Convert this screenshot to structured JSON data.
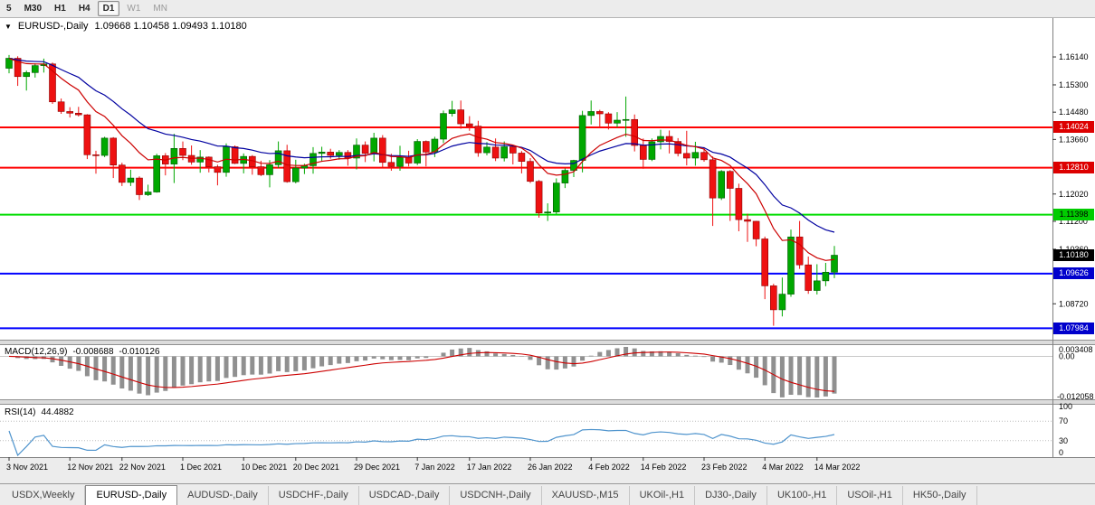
{
  "toolbar": {
    "timeframes": [
      {
        "label": "5",
        "state": "default"
      },
      {
        "label": "M30",
        "state": "default"
      },
      {
        "label": "H1",
        "state": "default"
      },
      {
        "label": "H4",
        "state": "default"
      },
      {
        "label": "D1",
        "state": "active"
      },
      {
        "label": "W1",
        "state": "disabled"
      },
      {
        "label": "MN",
        "state": "disabled"
      }
    ]
  },
  "icons": {
    "dropdown": "▼"
  },
  "chart": {
    "symbol_period": "EURUSD-,Daily",
    "ohlc_text": "1.09668 1.10458 1.09493 1.10180"
  },
  "colors": {
    "candle_up": "#00A800",
    "candle_down": "#EE1111",
    "candle_up_border": "#005500",
    "candle_down_border": "#8a0000",
    "axis_text": "#000000"
  },
  "price_axis": {
    "ticks": [
      {
        "label": "1.16140",
        "value": 1.1614
      },
      {
        "label": "1.15300",
        "value": 1.153
      },
      {
        "label": "1.14480",
        "value": 1.1448
      },
      {
        "label": "1.13660",
        "value": 1.1366
      },
      {
        "label": "1.12020",
        "value": 1.1202
      },
      {
        "label": "1.11200",
        "value": 1.112
      },
      {
        "label": "1.10360",
        "value": 1.1036
      },
      {
        "label": "1.08720",
        "value": 1.0872
      }
    ]
  },
  "price_levels": [
    {
      "price": 1.14024,
      "label": "1.14024",
      "line": "#FF0000",
      "badge_bg": "#DD0000",
      "badge_fg": "#FFFFFF",
      "width": 2
    },
    {
      "price": 1.1281,
      "label": "1.12810",
      "line": "#FF0000",
      "badge_bg": "#DD0000",
      "badge_fg": "#FFFFFF",
      "width": 2
    },
    {
      "price": 1.11398,
      "label": "1.11398",
      "line": "#00DD00",
      "badge_bg": "#00CC00",
      "badge_fg": "#000000",
      "width": 2
    },
    {
      "price": 1.09626,
      "label": "1.09626",
      "line": "#0000FF",
      "badge_bg": "#0000CC",
      "badge_fg": "#FFFFFF",
      "width": 2
    },
    {
      "price": 1.07984,
      "label": "1.07984",
      "line": "#0000FF",
      "badge_bg": "#0000CC",
      "badge_fg": "#FFFFFF",
      "width": 2
    }
  ],
  "current_price": {
    "value": 1.1018,
    "label": "1.10180",
    "badge_bg": "#000000",
    "badge_fg": "#FFFFFF"
  },
  "macd": {
    "title": "MACD(12,26,9)",
    "value_main": "-0.008688",
    "value_signal": "-0.010126",
    "axis_top": "0.003408",
    "axis_zero": "0.00",
    "axis_bottom": "-0.012058"
  },
  "rsi": {
    "title": "RSI(14)",
    "value": "44.4882",
    "period": 14,
    "color": "#4f94cd",
    "axis": [
      100,
      70,
      30,
      0
    ],
    "levels": [
      70,
      30
    ]
  },
  "date_axis": [
    {
      "text": "3 Nov 2021",
      "i": 0
    },
    {
      "text": "12 Nov 2021",
      "i": 7
    },
    {
      "text": "22 Nov 2021",
      "i": 13
    },
    {
      "text": "1 Dec 2021",
      "i": 20
    },
    {
      "text": "10 Dec 2021",
      "i": 27
    },
    {
      "text": "20 Dec 2021",
      "i": 33
    },
    {
      "text": "29 Dec 2021",
      "i": 40
    },
    {
      "text": "7 Jan 2022",
      "i": 47
    },
    {
      "text": "17 Jan 2022",
      "i": 53
    },
    {
      "text": "26 Jan 2022",
      "i": 60
    },
    {
      "text": "4 Feb 2022",
      "i": 67
    },
    {
      "text": "14 Feb 2022",
      "i": 73
    },
    {
      "text": "23 Feb 2022",
      "i": 80
    },
    {
      "text": "4 Mar 2022",
      "i": 87
    },
    {
      "text": "14 Mar 2022",
      "i": 93
    }
  ],
  "tabs": [
    {
      "label": "USDX,Weekly",
      "active": false
    },
    {
      "label": "EURUSD-,Daily",
      "active": true
    },
    {
      "label": "AUDUSD-,Daily",
      "active": false
    },
    {
      "label": "USDCHF-,Daily",
      "active": false
    },
    {
      "label": "USDCAD-,Daily",
      "active": false
    },
    {
      "label": "USDCNH-,Daily",
      "active": false
    },
    {
      "label": "XAUUSD-,M15",
      "active": false
    },
    {
      "label": "UKOil-,H1",
      "active": false
    },
    {
      "label": "DJ30-,Daily",
      "active": false
    },
    {
      "label": "UK100-,H1",
      "active": false
    },
    {
      "label": "USOil-,H1",
      "active": false
    },
    {
      "label": "HK50-,Daily",
      "active": false
    }
  ],
  "chart_data": {
    "type": "candlestick",
    "symbol": "EURUSD-",
    "timeframe": "Daily",
    "title": "EURUSD-,Daily",
    "last_bar": {
      "open": 1.09668,
      "high": 1.10458,
      "low": 1.09493,
      "close": 1.1018
    },
    "price_view_range": [
      1.0775,
      1.172
    ],
    "ma": [
      {
        "type": "ema",
        "period": 21,
        "color": "#0000A0"
      },
      {
        "type": "ema",
        "period": 10,
        "color": "#CC0000"
      }
    ],
    "macd": {
      "fast": 12,
      "slow": 26,
      "signal": 9,
      "hist_color": "#909090",
      "signal_color": "#CC0000"
    },
    "ohlc": [
      [
        1.158,
        1.162,
        1.1565,
        1.161
      ],
      [
        1.161,
        1.1616,
        1.1527,
        1.1555
      ],
      [
        1.1555,
        1.1573,
        1.1513,
        1.1567
      ],
      [
        1.1567,
        1.1595,
        1.1552,
        1.1588
      ],
      [
        1.1588,
        1.1609,
        1.1567,
        1.1593
      ],
      [
        1.1593,
        1.1597,
        1.1473,
        1.1479
      ],
      [
        1.1479,
        1.1489,
        1.1443,
        1.145
      ],
      [
        1.145,
        1.1463,
        1.1432,
        1.1445
      ],
      [
        1.1445,
        1.1464,
        1.1435,
        1.144
      ],
      [
        1.144,
        1.1442,
        1.1307,
        1.132
      ],
      [
        1.132,
        1.1332,
        1.1263,
        1.1318
      ],
      [
        1.1318,
        1.1374,
        1.1313,
        1.137
      ],
      [
        1.137,
        1.1373,
        1.125,
        1.1289
      ],
      [
        1.1289,
        1.1296,
        1.1226,
        1.1237
      ],
      [
        1.1237,
        1.1275,
        1.1226,
        1.125
      ],
      [
        1.125,
        1.1255,
        1.1184,
        1.12
      ],
      [
        1.12,
        1.123,
        1.1196,
        1.1208
      ],
      [
        1.1208,
        1.1323,
        1.1206,
        1.1317
      ],
      [
        1.1317,
        1.1325,
        1.1258,
        1.1292
      ],
      [
        1.1292,
        1.1383,
        1.1235,
        1.1339
      ],
      [
        1.1339,
        1.136,
        1.1304,
        1.1318
      ],
      [
        1.1318,
        1.1348,
        1.129,
        1.1298
      ],
      [
        1.1298,
        1.1334,
        1.1266,
        1.1313
      ],
      [
        1.1313,
        1.1315,
        1.1267,
        1.1284
      ],
      [
        1.1284,
        1.129,
        1.1228,
        1.1267
      ],
      [
        1.1267,
        1.1354,
        1.1254,
        1.1344
      ],
      [
        1.1344,
        1.1348,
        1.1292,
        1.1294
      ],
      [
        1.1294,
        1.1324,
        1.1264,
        1.1315
      ],
      [
        1.1315,
        1.1319,
        1.126,
        1.1284
      ],
      [
        1.1284,
        1.1302,
        1.1256,
        1.126
      ],
      [
        1.126,
        1.1304,
        1.1222,
        1.129
      ],
      [
        1.129,
        1.136,
        1.128,
        1.1332
      ],
      [
        1.1332,
        1.135,
        1.1236,
        1.1239
      ],
      [
        1.1239,
        1.1305,
        1.1234,
        1.128
      ],
      [
        1.128,
        1.1293,
        1.1262,
        1.1287
      ],
      [
        1.1287,
        1.1343,
        1.1263,
        1.1324
      ],
      [
        1.1324,
        1.1344,
        1.13,
        1.1328
      ],
      [
        1.1328,
        1.1338,
        1.1308,
        1.1318
      ],
      [
        1.1318,
        1.1334,
        1.1305,
        1.1327
      ],
      [
        1.1327,
        1.1334,
        1.1287,
        1.131
      ],
      [
        1.131,
        1.1369,
        1.1276,
        1.1349
      ],
      [
        1.1349,
        1.136,
        1.1298,
        1.1324
      ],
      [
        1.1324,
        1.1386,
        1.13,
        1.137
      ],
      [
        1.137,
        1.1379,
        1.1279,
        1.1297
      ],
      [
        1.1297,
        1.1323,
        1.1272,
        1.1285
      ],
      [
        1.1285,
        1.1347,
        1.1272,
        1.1312
      ],
      [
        1.1312,
        1.1332,
        1.1285,
        1.1295
      ],
      [
        1.1295,
        1.1367,
        1.1289,
        1.136
      ],
      [
        1.136,
        1.1363,
        1.1285,
        1.1328
      ],
      [
        1.1328,
        1.1374,
        1.1313,
        1.1367
      ],
      [
        1.1367,
        1.1453,
        1.1355,
        1.1444
      ],
      [
        1.1444,
        1.1482,
        1.1435,
        1.1455
      ],
      [
        1.1455,
        1.1483,
        1.1398,
        1.1413
      ],
      [
        1.1413,
        1.1436,
        1.1392,
        1.1406
      ],
      [
        1.1406,
        1.1422,
        1.1314,
        1.1326
      ],
      [
        1.1326,
        1.1358,
        1.1318,
        1.1343
      ],
      [
        1.1343,
        1.1369,
        1.1301,
        1.131
      ],
      [
        1.131,
        1.136,
        1.13,
        1.1344
      ],
      [
        1.1344,
        1.1349,
        1.1291,
        1.1325
      ],
      [
        1.1325,
        1.1331,
        1.1264,
        1.13
      ],
      [
        1.13,
        1.131,
        1.1235,
        1.124
      ],
      [
        1.124,
        1.1244,
        1.1131,
        1.1145
      ],
      [
        1.1145,
        1.1174,
        1.1121,
        1.1148
      ],
      [
        1.1148,
        1.1249,
        1.1141,
        1.1235
      ],
      [
        1.1235,
        1.1279,
        1.122,
        1.1273
      ],
      [
        1.1273,
        1.1305,
        1.1253,
        1.1303
      ],
      [
        1.1303,
        1.1452,
        1.1267,
        1.1438
      ],
      [
        1.1438,
        1.1483,
        1.1411,
        1.145
      ],
      [
        1.145,
        1.1455,
        1.1401,
        1.1443
      ],
      [
        1.1443,
        1.1448,
        1.1396,
        1.1415
      ],
      [
        1.1415,
        1.1448,
        1.1403,
        1.1424
      ],
      [
        1.1424,
        1.1495,
        1.1374,
        1.1426
      ],
      [
        1.1426,
        1.1441,
        1.133,
        1.1348
      ],
      [
        1.1348,
        1.1369,
        1.1278,
        1.1306
      ],
      [
        1.1306,
        1.1369,
        1.1301,
        1.1359
      ],
      [
        1.1359,
        1.1395,
        1.1336,
        1.1375
      ],
      [
        1.1375,
        1.1393,
        1.1324,
        1.136
      ],
      [
        1.136,
        1.137,
        1.1315,
        1.1324
      ],
      [
        1.1324,
        1.1392,
        1.1288,
        1.131
      ],
      [
        1.131,
        1.1359,
        1.1287,
        1.1327
      ],
      [
        1.1327,
        1.1343,
        1.1299,
        1.1305
      ],
      [
        1.1305,
        1.1315,
        1.1106,
        1.119
      ],
      [
        1.119,
        1.1274,
        1.1184,
        1.127
      ],
      [
        1.127,
        1.1274,
        1.1121,
        1.1219
      ],
      [
        1.1219,
        1.1233,
        1.109,
        1.1125
      ],
      [
        1.1125,
        1.1143,
        1.1058,
        1.112
      ],
      [
        1.112,
        1.1121,
        1.1045,
        1.1067
      ],
      [
        1.1067,
        1.1074,
        1.0886,
        1.0926
      ],
      [
        1.0926,
        1.0932,
        1.0806,
        1.0854
      ],
      [
        1.0854,
        1.0951,
        1.0834,
        1.0901
      ],
      [
        1.0901,
        1.1095,
        1.0893,
        1.1073
      ],
      [
        1.1073,
        1.1121,
        1.0977,
        1.0989
      ],
      [
        1.0989,
        1.1014,
        1.0902,
        1.0912
      ],
      [
        1.0912,
        1.0991,
        1.09,
        1.0941
      ],
      [
        1.0941,
        1.0995,
        1.0925,
        1.0967
      ],
      [
        1.0967,
        1.1046,
        1.0949,
        1.1018
      ]
    ]
  }
}
